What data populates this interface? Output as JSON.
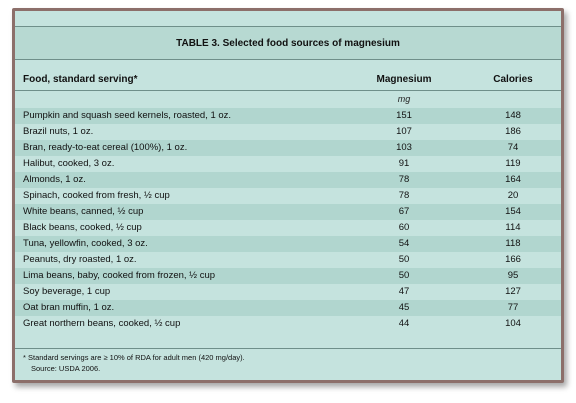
{
  "table": {
    "title": "TABLE 3. Selected food sources of magnesium",
    "columns": {
      "food": "Food, standard serving*",
      "magnesium": "Magnesium",
      "calories": "Calories"
    },
    "units": {
      "magnesium": "mg"
    },
    "rows": [
      {
        "food": "Pumpkin and squash seed kernels, roasted, 1 oz.",
        "magnesium": "151",
        "calories": "148"
      },
      {
        "food": "Brazil nuts, 1 oz.",
        "magnesium": "107",
        "calories": "186"
      },
      {
        "food": "Bran, ready-to-eat cereal (100%), 1 oz.",
        "magnesium": "103",
        "calories": "74"
      },
      {
        "food": "Halibut, cooked, 3 oz.",
        "magnesium": "91",
        "calories": "119"
      },
      {
        "food": "Almonds, 1 oz.",
        "magnesium": "78",
        "calories": "164"
      },
      {
        "food": "Spinach, cooked from fresh, ½ cup",
        "magnesium": "78",
        "calories": "20"
      },
      {
        "food": "White beans, canned, ½ cup",
        "magnesium": "67",
        "calories": "154"
      },
      {
        "food": "Black beans, cooked, ½ cup",
        "magnesium": "60",
        "calories": "114"
      },
      {
        "food": "Tuna, yellowfin, cooked, 3 oz.",
        "magnesium": "54",
        "calories": "118"
      },
      {
        "food": "Peanuts, dry roasted, 1 oz.",
        "magnesium": "50",
        "calories": "166"
      },
      {
        "food": "Lima beans, baby, cooked from frozen, ½ cup",
        "magnesium": "50",
        "calories": "95"
      },
      {
        "food": "Soy beverage, 1 cup",
        "magnesium": "47",
        "calories": "127"
      },
      {
        "food": "Oat bran muffin, 1 oz.",
        "magnesium": "45",
        "calories": "77"
      },
      {
        "food": "Great northern beans, cooked, ½ cup",
        "magnesium": "44",
        "calories": "104"
      }
    ],
    "footnote_line1": "*  Standard servings are ≥ 10% of RDA for adult men (420 mg/day).",
    "footnote_line2": "Source: USDA 2006."
  }
}
